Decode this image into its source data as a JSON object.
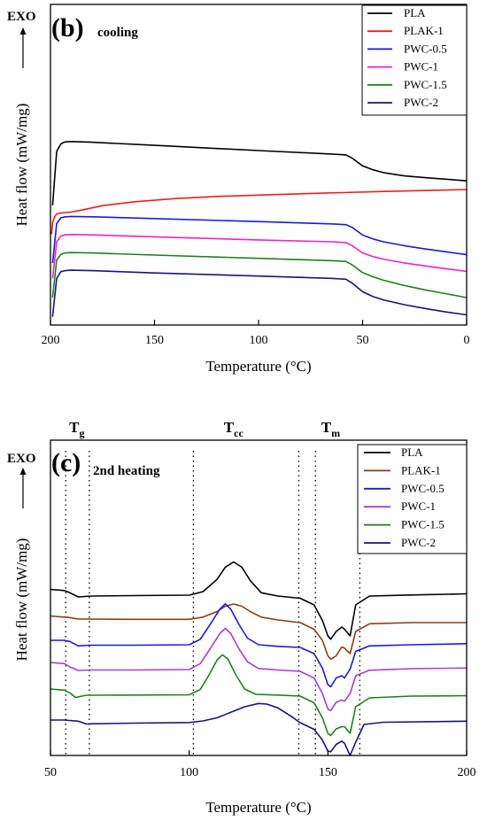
{
  "chart_data": [
    {
      "type": "line",
      "panel": "(b)",
      "subtitle": "cooling",
      "exo_label": "EXO",
      "xlabel": "Temperature (°C)",
      "ylabel": "Heat flow (mW/mg)",
      "xlim": [
        200,
        0
      ],
      "x_reversed": true,
      "ylim": [
        0,
        100
      ],
      "y_ticks_shown": false,
      "x_ticks": [
        200,
        150,
        100,
        50,
        0
      ],
      "legend_position": "top-right",
      "series": [
        {
          "name": "PLA",
          "color": "#000000",
          "x": [
            199,
            197,
            195,
            193,
            190,
            180,
            150,
            100,
            65,
            58,
            55,
            50,
            45,
            40,
            30,
            20,
            10,
            0
          ],
          "y": [
            60,
            88,
            92,
            93,
            93.2,
            92.8,
            91.2,
            88.5,
            86.7,
            86.2,
            84.5,
            80.5,
            78.5,
            77,
            75.3,
            74.4,
            73.6,
            72.7
          ]
        },
        {
          "name": "PLAK-1",
          "color": "#e8201a",
          "x": [
            199.5,
            199,
            198,
            197,
            195,
            190,
            185,
            175,
            160,
            140,
            120,
            100,
            80,
            60,
            40,
            20,
            0
          ],
          "y": [
            45,
            51,
            54,
            55.5,
            56,
            56.5,
            57.5,
            59.8,
            61.8,
            63.5,
            64.6,
            65.3,
            66,
            66.6,
            67.2,
            67.7,
            68.2
          ]
        },
        {
          "name": "PWC-0.5",
          "color": "#1a1adb",
          "x": [
            199,
            197,
            195,
            193,
            190,
            180,
            150,
            100,
            65,
            58,
            55,
            50,
            45,
            40,
            30,
            20,
            10,
            0
          ],
          "y": [
            30,
            50.5,
            53.5,
            54,
            54.2,
            54,
            53.1,
            51.5,
            50.3,
            49.9,
            48.5,
            44.5,
            42.5,
            41,
            39,
            37.3,
            35.8,
            34.3
          ]
        },
        {
          "name": "PWC-1",
          "color": "#ee22cc",
          "x": [
            199,
            197,
            195,
            193,
            190,
            180,
            150,
            100,
            65,
            58,
            55,
            50,
            45,
            40,
            30,
            20,
            10,
            0
          ],
          "y": [
            22,
            41,
            44,
            44.6,
            44.8,
            44.6,
            43.6,
            42,
            41,
            40.6,
            39,
            35.2,
            33.3,
            32,
            30,
            28.5,
            27,
            25.6
          ]
        },
        {
          "name": "PWC-1.5",
          "color": "#1e7f1e",
          "x": [
            199,
            197,
            195,
            193,
            190,
            180,
            150,
            100,
            65,
            58,
            55,
            50,
            45,
            40,
            30,
            20,
            10,
            0
          ],
          "y": [
            12,
            31.5,
            34.5,
            35.2,
            35.4,
            35.2,
            34.1,
            32.4,
            31.2,
            30.8,
            29,
            25,
            22.8,
            21,
            18.3,
            16,
            14,
            12
          ]
        },
        {
          "name": "PWC-2",
          "color": "#15157a",
          "x": [
            199,
            197,
            195,
            193,
            190,
            180,
            150,
            100,
            65,
            58,
            55,
            50,
            45,
            40,
            30,
            20,
            10,
            0
          ],
          "y": [
            2,
            22,
            25.5,
            26,
            26.2,
            26,
            24.8,
            23.2,
            22,
            21.5,
            19.5,
            15,
            12.5,
            10.8,
            8.3,
            6.3,
            4.5,
            3
          ]
        }
      ]
    },
    {
      "type": "line",
      "panel": "(c)",
      "subtitle": "2nd heating",
      "exo_label": "EXO",
      "xlabel": "Temperature (°C)",
      "ylabel": "Heat flow (mW/mg)",
      "xlim": [
        50,
        200
      ],
      "ylim": [
        0,
        100
      ],
      "y_ticks_shown": false,
      "x_ticks": [
        50,
        100,
        150,
        200
      ],
      "legend_position": "top-right",
      "transition_labels": [
        {
          "main": "T",
          "sub": "g",
          "x": 59.5
        },
        {
          "main": "T",
          "sub": "cc",
          "x": 116
        },
        {
          "main": "T",
          "sub": "m",
          "x": 151
        }
      ],
      "reference_lines_x": [
        55.5,
        64,
        101.5,
        139.5,
        145.5,
        161.5
      ],
      "series": [
        {
          "name": "PLA",
          "color": "#000000",
          "x": [
            50,
            55,
            57,
            60,
            65,
            80,
            100,
            105,
            110,
            113,
            116,
            119,
            122,
            126,
            132,
            140,
            145,
            148,
            150,
            151,
            153,
            155,
            156,
            158,
            160,
            165,
            180,
            200
          ],
          "y": [
            73,
            72.5,
            71.5,
            69.6,
            70,
            70.2,
            70.4,
            72,
            77.5,
            83,
            85.4,
            83,
            77,
            71.5,
            70,
            69,
            66,
            59,
            52,
            50.5,
            54,
            56,
            55,
            52,
            66,
            70,
            70.5,
            71
          ]
        },
        {
          "name": "PLAK-1",
          "color": "#8b3d12",
          "x": [
            50,
            55,
            57,
            60,
            65,
            80,
            100,
            105,
            110,
            113,
            116,
            119,
            122,
            126,
            132,
            140,
            145,
            148,
            150,
            151,
            153,
            155,
            156,
            158,
            160,
            165,
            180,
            200
          ],
          "y": [
            61,
            60.5,
            60.3,
            59.6,
            59.6,
            59.5,
            59.5,
            60.5,
            63,
            65.4,
            66.4,
            65.4,
            63,
            60.5,
            59.2,
            58,
            55,
            50,
            43,
            41.5,
            43,
            47,
            46.5,
            44,
            54,
            57.5,
            58,
            58
          ]
        },
        {
          "name": "PWC-0.5",
          "color": "#1a1adb",
          "x": [
            50,
            55,
            57,
            60,
            64,
            80,
            100,
            104,
            108,
            111,
            113,
            115,
            118,
            121,
            125,
            132,
            140,
            145,
            148,
            150,
            151,
            153,
            155,
            156,
            158,
            160,
            165,
            180,
            200
          ],
          "y": [
            50,
            50,
            49.5,
            47.5,
            47.8,
            47.8,
            48,
            50.5,
            58,
            64,
            66.5,
            64,
            57,
            51,
            48,
            47.3,
            46.8,
            44,
            37.5,
            30,
            29,
            33,
            34,
            33,
            37,
            45,
            47.5,
            48,
            48.5
          ]
        },
        {
          "name": "PWC-1",
          "color": "#a83dd4",
          "x": [
            50,
            55,
            57,
            60,
            64,
            80,
            100,
            104,
            108,
            111,
            113,
            115,
            118,
            121,
            125,
            132,
            140,
            145,
            148,
            150,
            151,
            153,
            155,
            156,
            158,
            160,
            165,
            180,
            200
          ],
          "y": [
            40,
            39.5,
            38,
            36.4,
            36.6,
            36.6,
            36.8,
            39.5,
            47,
            53,
            55.4,
            53,
            46,
            40.3,
            37.3,
            36.6,
            36,
            33,
            26,
            19,
            18.3,
            22,
            23,
            22.5,
            26,
            34,
            36.5,
            37.2,
            37.5
          ]
        },
        {
          "name": "PWC-1.5",
          "color": "#1e7f1e",
          "x": [
            50,
            55,
            57,
            59,
            63,
            80,
            100,
            104,
            107,
            110,
            112,
            114,
            117,
            120,
            124,
            132,
            140,
            145,
            148,
            150,
            151,
            153,
            155,
            156,
            158,
            160,
            165,
            180,
            200
          ],
          "y": [
            28,
            27.5,
            26.3,
            24.2,
            25.2,
            25.3,
            25.4,
            27.8,
            34,
            41,
            43.5,
            41.5,
            34,
            28,
            25.6,
            25.3,
            24.8,
            21.8,
            15,
            8,
            7,
            10,
            11,
            11,
            8,
            20,
            24,
            24.8,
            25
          ]
        },
        {
          "name": "PWC-2",
          "color": "#15157a",
          "x": [
            50,
            55,
            60,
            63,
            64,
            80,
            100,
            105,
            110,
            115,
            120,
            125,
            128,
            132,
            137,
            140,
            145,
            148,
            150,
            151,
            153,
            155,
            156,
            158,
            160,
            163,
            170,
            200
          ],
          "y": [
            14,
            14,
            13.5,
            12.2,
            12.3,
            12.6,
            12.9,
            13.6,
            15,
            17.5,
            20,
            21.5,
            21.2,
            19.5,
            15.5,
            12.8,
            9.8,
            5,
            0,
            -0.3,
            3,
            4.5,
            3.5,
            -2,
            4,
            12,
            13,
            13.5
          ]
        }
      ]
    }
  ]
}
